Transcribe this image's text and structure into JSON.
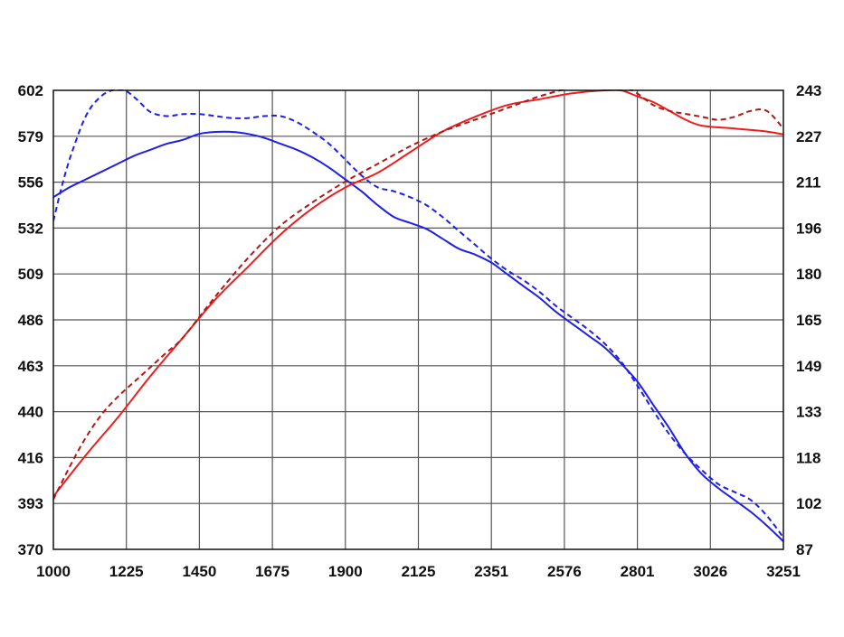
{
  "chart_data": {
    "type": "line",
    "title": "",
    "xlabel": "",
    "ylabel": "",
    "y2label": "",
    "grid": true,
    "legend": "none",
    "x_ticks": [
      "1000",
      "1225",
      "1450",
      "1675",
      "1900",
      "2125",
      "2351",
      "2576",
      "2801",
      "3026",
      "3251"
    ],
    "y_left_ticks": [
      "602",
      "579",
      "556",
      "532",
      "509",
      "486",
      "463",
      "440",
      "416",
      "393",
      "370"
    ],
    "y_right_ticks": [
      "243",
      "227",
      "211",
      "196",
      "180",
      "165",
      "149",
      "133",
      "118",
      "102",
      "87"
    ],
    "xlim": [
      1000,
      3251
    ],
    "ylim_left": [
      370,
      602
    ],
    "ylim_right": [
      87,
      243
    ],
    "colors": {
      "blue": "#1f1fe6",
      "red": "#ee1c1c",
      "darkred": "#b01818",
      "grid": "#555555",
      "frame": "#111111"
    },
    "series": [
      {
        "axis": "left",
        "color": "#1f1fe6",
        "dash": false,
        "points": [
          [
            1000,
            548
          ],
          [
            1050,
            553
          ],
          [
            1100,
            557
          ],
          [
            1150,
            561
          ],
          [
            1200,
            565
          ],
          [
            1250,
            569
          ],
          [
            1300,
            572
          ],
          [
            1350,
            575
          ],
          [
            1400,
            577
          ],
          [
            1450,
            580
          ],
          [
            1500,
            581
          ],
          [
            1550,
            581
          ],
          [
            1600,
            580
          ],
          [
            1650,
            578
          ],
          [
            1700,
            575
          ],
          [
            1750,
            572
          ],
          [
            1800,
            568
          ],
          [
            1850,
            563
          ],
          [
            1900,
            557
          ],
          [
            1950,
            551
          ],
          [
            2000,
            544
          ],
          [
            2050,
            538
          ],
          [
            2100,
            535
          ],
          [
            2150,
            532
          ],
          [
            2200,
            527
          ],
          [
            2250,
            522
          ],
          [
            2300,
            519
          ],
          [
            2350,
            515
          ],
          [
            2400,
            509
          ],
          [
            2450,
            503
          ],
          [
            2500,
            497
          ],
          [
            2550,
            490
          ],
          [
            2600,
            484
          ],
          [
            2650,
            478
          ],
          [
            2700,
            472
          ],
          [
            2750,
            464
          ],
          [
            2800,
            455
          ],
          [
            2850,
            443
          ],
          [
            2900,
            431
          ],
          [
            2950,
            418
          ],
          [
            3000,
            408
          ],
          [
            3050,
            401
          ],
          [
            3100,
            395
          ],
          [
            3150,
            389
          ],
          [
            3200,
            382
          ],
          [
            3251,
            374
          ]
        ]
      },
      {
        "axis": "left",
        "color": "#1f1fe6",
        "dash": true,
        "points": [
          [
            1000,
            536
          ],
          [
            1030,
            556
          ],
          [
            1060,
            572
          ],
          [
            1100,
            589
          ],
          [
            1140,
            598
          ],
          [
            1180,
            602
          ],
          [
            1220,
            602
          ],
          [
            1260,
            597
          ],
          [
            1300,
            591
          ],
          [
            1350,
            589
          ],
          [
            1400,
            590
          ],
          [
            1450,
            590
          ],
          [
            1500,
            589
          ],
          [
            1550,
            588
          ],
          [
            1600,
            588
          ],
          [
            1650,
            589
          ],
          [
            1700,
            589
          ],
          [
            1750,
            586
          ],
          [
            1800,
            581
          ],
          [
            1850,
            575
          ],
          [
            1900,
            567
          ],
          [
            1950,
            559
          ],
          [
            2000,
            553
          ],
          [
            2050,
            551
          ],
          [
            2100,
            548
          ],
          [
            2150,
            544
          ],
          [
            2200,
            538
          ],
          [
            2250,
            531
          ],
          [
            2300,
            524
          ],
          [
            2350,
            517
          ],
          [
            2400,
            511
          ],
          [
            2450,
            506
          ],
          [
            2500,
            500
          ],
          [
            2550,
            493
          ],
          [
            2600,
            487
          ],
          [
            2650,
            481
          ],
          [
            2700,
            474
          ],
          [
            2750,
            465
          ],
          [
            2800,
            453
          ],
          [
            2850,
            440
          ],
          [
            2900,
            428
          ],
          [
            2950,
            418
          ],
          [
            3000,
            410
          ],
          [
            3050,
            403
          ],
          [
            3100,
            399
          ],
          [
            3150,
            395
          ],
          [
            3200,
            387
          ],
          [
            3251,
            376
          ]
        ]
      },
      {
        "axis": "right",
        "color": "#ee1c1c",
        "dash": false,
        "points": [
          [
            1000,
            105
          ],
          [
            1100,
            119
          ],
          [
            1200,
            132
          ],
          [
            1300,
            146
          ],
          [
            1400,
            159
          ],
          [
            1500,
            172
          ],
          [
            1600,
            183
          ],
          [
            1700,
            194
          ],
          [
            1800,
            203
          ],
          [
            1900,
            210
          ],
          [
            2000,
            215
          ],
          [
            2100,
            222
          ],
          [
            2200,
            229
          ],
          [
            2300,
            234
          ],
          [
            2400,
            238
          ],
          [
            2500,
            240
          ],
          [
            2600,
            242
          ],
          [
            2700,
            243
          ],
          [
            2750,
            243
          ],
          [
            2800,
            241
          ],
          [
            2850,
            239
          ],
          [
            2900,
            236
          ],
          [
            2950,
            233
          ],
          [
            3000,
            231
          ],
          [
            3100,
            230
          ],
          [
            3200,
            229
          ],
          [
            3251,
            228
          ]
        ]
      },
      {
        "axis": "right",
        "color": "#b01818",
        "dash": true,
        "points": [
          [
            1000,
            104
          ],
          [
            1050,
            115
          ],
          [
            1100,
            125
          ],
          [
            1150,
            133
          ],
          [
            1200,
            139
          ],
          [
            1250,
            144
          ],
          [
            1300,
            149
          ],
          [
            1350,
            154
          ],
          [
            1400,
            159
          ],
          [
            1500,
            173
          ],
          [
            1600,
            186
          ],
          [
            1700,
            197
          ],
          [
            1800,
            205
          ],
          [
            1900,
            212
          ],
          [
            2000,
            218
          ],
          [
            2100,
            224
          ],
          [
            2200,
            229
          ],
          [
            2300,
            233
          ],
          [
            2400,
            237
          ],
          [
            2500,
            241
          ],
          [
            2600,
            244
          ],
          [
            2700,
            246
          ],
          [
            2750,
            245
          ],
          [
            2800,
            242
          ],
          [
            2850,
            238
          ],
          [
            2900,
            236
          ],
          [
            2950,
            235
          ],
          [
            3000,
            234
          ],
          [
            3050,
            233
          ],
          [
            3100,
            234
          ],
          [
            3150,
            236
          ],
          [
            3200,
            236
          ],
          [
            3251,
            230
          ]
        ]
      }
    ]
  }
}
